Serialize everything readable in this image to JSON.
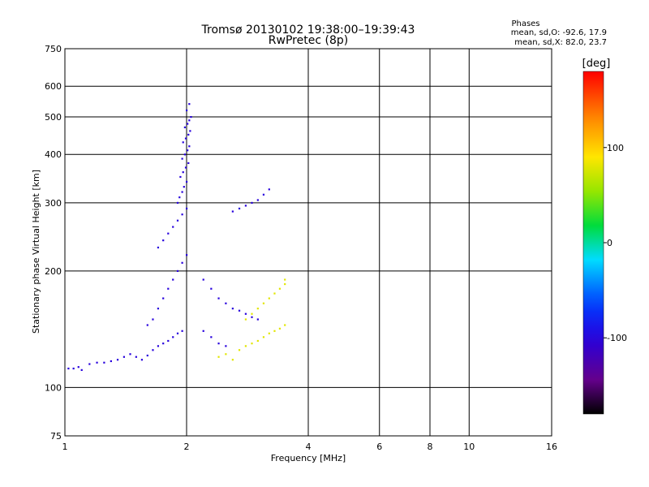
{
  "chart_data": {
    "type": "scatter",
    "title": "Tromsø 20130102 19:38:00–19:39:43",
    "subtitle": "RwPretec (8p)",
    "xlabel": "Frequency [MHz]",
    "ylabel": "Stationary phase Virtual Height [km]",
    "x_scale": "log",
    "y_scale": "log",
    "xlim": [
      1,
      16
    ],
    "ylim": [
      75,
      750
    ],
    "x_ticks": [
      1,
      2,
      4,
      6,
      8,
      10,
      16
    ],
    "y_ticks": [
      75,
      100,
      200,
      300,
      400,
      500,
      600,
      750
    ],
    "grid": true,
    "stats": {
      "header": "Phases",
      "line1": "mean, sd,O: -92.6, 17.9",
      "line2": "mean, sd,X:  82.0, 23.7"
    },
    "colorbar": {
      "label": "[deg]",
      "range": [
        -180,
        180
      ],
      "ticks": [
        -100,
        0,
        100
      ],
      "colormap": "rainbow (black-purple-blue-cyan-green-yellow-orange-red)"
    },
    "series": [
      {
        "mode": "O",
        "phase_deg": -100,
        "points": [
          [
            1.02,
            112
          ],
          [
            1.05,
            112
          ],
          [
            1.08,
            113
          ],
          [
            1.1,
            111
          ],
          [
            1.15,
            115
          ],
          [
            1.2,
            116
          ],
          [
            1.25,
            116
          ],
          [
            1.3,
            117
          ],
          [
            1.35,
            118
          ],
          [
            1.4,
            120
          ],
          [
            1.45,
            122
          ],
          [
            1.5,
            120
          ],
          [
            1.55,
            118
          ],
          [
            1.6,
            121
          ],
          [
            1.65,
            125
          ],
          [
            1.7,
            128
          ],
          [
            1.75,
            130
          ],
          [
            1.8,
            132
          ],
          [
            1.85,
            135
          ],
          [
            1.9,
            138
          ],
          [
            1.95,
            140
          ],
          [
            1.6,
            145
          ],
          [
            1.65,
            150
          ],
          [
            1.7,
            160
          ],
          [
            1.75,
            170
          ],
          [
            1.8,
            180
          ],
          [
            1.85,
            190
          ],
          [
            1.9,
            200
          ],
          [
            1.95,
            210
          ],
          [
            2.0,
            220
          ],
          [
            1.7,
            230
          ],
          [
            1.75,
            240
          ],
          [
            1.8,
            250
          ],
          [
            1.85,
            260
          ],
          [
            1.9,
            270
          ],
          [
            1.95,
            280
          ],
          [
            2.0,
            290
          ],
          [
            1.9,
            300
          ],
          [
            1.92,
            310
          ],
          [
            1.95,
            320
          ],
          [
            1.97,
            330
          ],
          [
            2.0,
            340
          ],
          [
            1.93,
            350
          ],
          [
            1.96,
            360
          ],
          [
            1.99,
            370
          ],
          [
            2.02,
            380
          ],
          [
            1.95,
            390
          ],
          [
            1.98,
            400
          ],
          [
            2.01,
            410
          ],
          [
            2.03,
            420
          ],
          [
            1.96,
            430
          ],
          [
            1.99,
            440
          ],
          [
            2.02,
            450
          ],
          [
            2.04,
            460
          ],
          [
            1.98,
            470
          ],
          [
            2.01,
            480
          ],
          [
            2.03,
            490
          ],
          [
            2.05,
            500
          ],
          [
            2.0,
            520
          ],
          [
            2.03,
            540
          ],
          [
            2.2,
            190
          ],
          [
            2.3,
            180
          ],
          [
            2.4,
            170
          ],
          [
            2.5,
            165
          ],
          [
            2.6,
            160
          ],
          [
            2.7,
            158
          ],
          [
            2.8,
            155
          ],
          [
            2.9,
            152
          ],
          [
            3.0,
            150
          ],
          [
            2.2,
            140
          ],
          [
            2.3,
            135
          ],
          [
            2.4,
            130
          ],
          [
            2.5,
            128
          ],
          [
            2.6,
            285
          ],
          [
            2.7,
            290
          ],
          [
            2.8,
            295
          ],
          [
            2.9,
            300
          ],
          [
            3.0,
            305
          ],
          [
            3.1,
            315
          ],
          [
            3.2,
            325
          ]
        ]
      },
      {
        "mode": "X",
        "phase_deg": 80,
        "points": [
          [
            2.4,
            120
          ],
          [
            2.5,
            122
          ],
          [
            2.6,
            118
          ],
          [
            2.7,
            125
          ],
          [
            2.8,
            128
          ],
          [
            2.9,
            130
          ],
          [
            3.0,
            132
          ],
          [
            3.1,
            135
          ],
          [
            3.2,
            138
          ],
          [
            3.3,
            140
          ],
          [
            3.4,
            142
          ],
          [
            3.5,
            145
          ],
          [
            2.8,
            150
          ],
          [
            2.9,
            155
          ],
          [
            3.0,
            160
          ],
          [
            3.1,
            165
          ],
          [
            3.2,
            170
          ],
          [
            3.3,
            175
          ],
          [
            3.4,
            180
          ],
          [
            3.5,
            185
          ],
          [
            3.5,
            190
          ]
        ]
      }
    ]
  }
}
